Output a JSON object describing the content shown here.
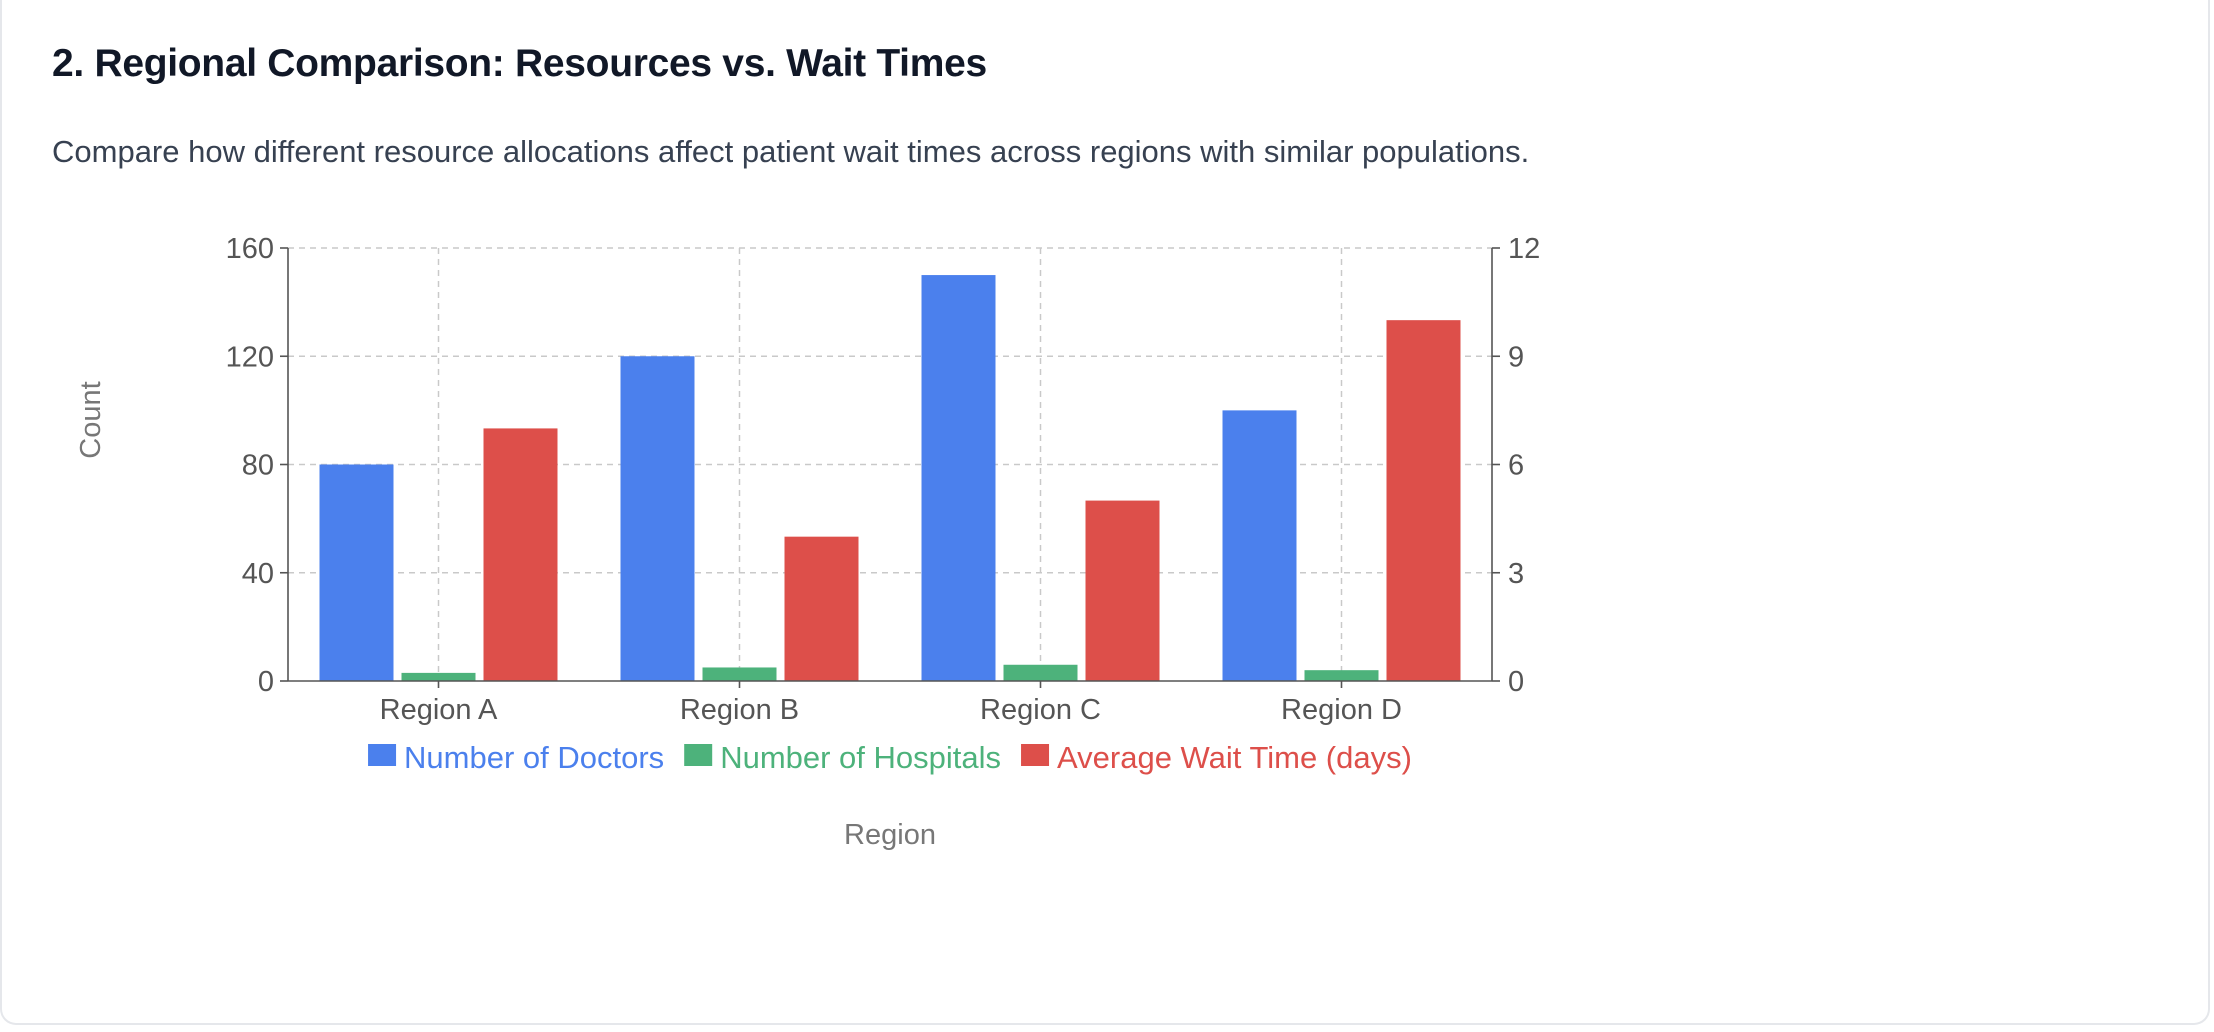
{
  "section": {
    "title": "2. Regional Comparison: Resources vs. Wait Times",
    "description": "Compare how different resource allocations affect patient wait times across regions with similar populations."
  },
  "chart_data": {
    "type": "bar",
    "categories": [
      "Region A",
      "Region B",
      "Region C",
      "Region D"
    ],
    "series": [
      {
        "name": "Number of Doctors",
        "values": [
          80,
          120,
          150,
          100
        ],
        "axis": "left",
        "color": "#4b80ed"
      },
      {
        "name": "Number of Hospitals",
        "values": [
          3,
          5,
          6,
          4
        ],
        "axis": "left",
        "color": "#4db27b"
      },
      {
        "name": "Average Wait Time (days)",
        "values": [
          7,
          4,
          5,
          10
        ],
        "axis": "right",
        "color": "#dd4f4a"
      }
    ],
    "xlabel": "Region",
    "ylabel": "Count",
    "ylim": [
      0,
      160
    ],
    "yticks": [
      "0",
      "40",
      "80",
      "120",
      "160"
    ],
    "y2lim": [
      0,
      12
    ],
    "y2ticks": [
      "0",
      "3",
      "6",
      "9",
      "12"
    ],
    "grid": true,
    "legend_position": "bottom"
  }
}
